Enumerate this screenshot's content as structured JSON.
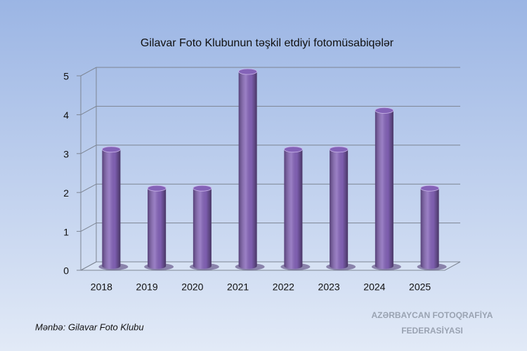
{
  "chart_data": {
    "type": "bar",
    "title": "Gilavar Foto Klubunun təşkil etdiyi fotomüsabiqələr",
    "categories": [
      "2018",
      "2019",
      "2020",
      "2021",
      "2022",
      "2023",
      "2024",
      "2025"
    ],
    "values": [
      3,
      2,
      2,
      5,
      3,
      3,
      4,
      2
    ],
    "color": "#8463b8",
    "ylim": [
      0,
      5
    ],
    "yticks": [
      0,
      1,
      2,
      3,
      4,
      5
    ],
    "grid": true,
    "source": "Mənbə: Gilavar Foto Klubu",
    "watermark": [
      "AZƏRBAYCAN FOTOQRAFİYA",
      "FEDERASİYASI"
    ]
  }
}
